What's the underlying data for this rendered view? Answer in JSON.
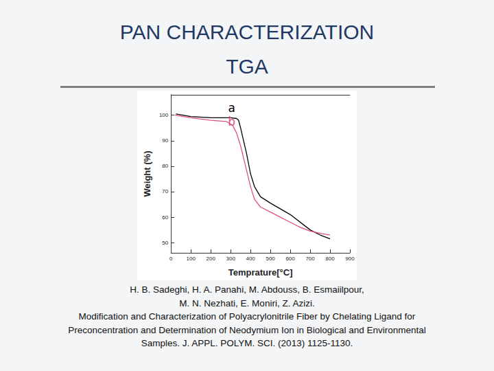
{
  "slide": {
    "title": [
      "PAN CHARACTERIZATION",
      "TGA"
    ],
    "reference": [
      "H. B. Sadeghi, H. A. Panahi, M. Abdouss, B. Esmaiilpour,",
      "M. N. Nezhati, E. Moniri, Z. Azizi.",
      "Modification and Characterization of Polyacrylonitrile Fiber by Chelating Ligand for",
      "Preconcentration and Determination of Neodymium Ion in Biological and Environmental",
      "Samples. J. APPL. POLYM. SCI. (2013) 1125-1130."
    ]
  },
  "chart_data": {
    "type": "line",
    "x_label": "Temprature[°C]",
    "y_label": "Weight (%)",
    "xlim": [
      0,
      900
    ],
    "xticks": [
      0,
      100,
      200,
      300,
      400,
      500,
      600,
      700,
      800
    ],
    "ylim": [
      46,
      108
    ],
    "yticks": [
      50,
      60,
      70,
      80,
      90,
      100
    ],
    "grid": false,
    "series": [
      {
        "name": "a",
        "color": "#000000",
        "label_position": [
          305,
          103
        ],
        "x": [
          25,
          100,
          200,
          300,
          330,
          340,
          350,
          365,
          380,
          400,
          420,
          450,
          500,
          600,
          700,
          750,
          800
        ],
        "values": [
          100.5,
          99.5,
          99,
          99,
          98.7,
          98,
          95,
          90,
          85,
          77,
          72,
          68,
          65.5,
          61,
          55,
          53,
          51.5
        ]
      },
      {
        "name": "b",
        "color": "#e0507a",
        "label_position": [
          305,
          97.5
        ],
        "x": [
          20,
          100,
          200,
          280,
          310,
          330,
          350,
          375,
          400,
          420,
          450,
          500,
          550,
          600,
          650,
          700,
          760,
          800
        ],
        "values": [
          100,
          99,
          98,
          97.5,
          96,
          93,
          88,
          80,
          72,
          67,
          64,
          62,
          60,
          58,
          56,
          54.5,
          53.5,
          53
        ]
      }
    ]
  }
}
